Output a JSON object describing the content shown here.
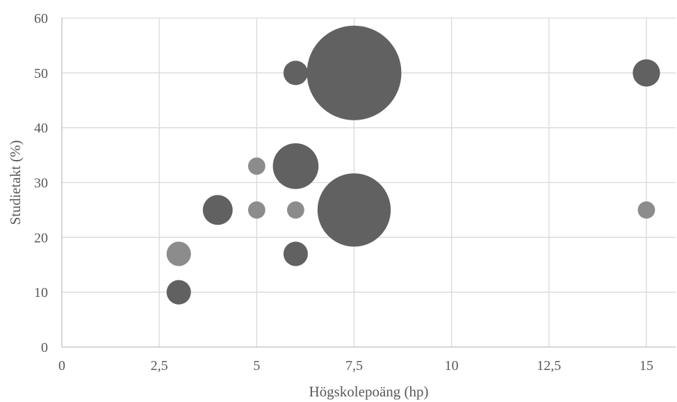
{
  "chart_data": {
    "type": "bubble",
    "title": "",
    "xlabel": "Högskolepoäng (hp)",
    "ylabel": "Studietakt (%)",
    "xlim": [
      0,
      15.75
    ],
    "ylim": [
      0,
      60
    ],
    "x_ticks": [
      0,
      2.5,
      5,
      7.5,
      10,
      12.5,
      15
    ],
    "x_tick_labels": [
      "0",
      "2,5",
      "5",
      "7,5",
      "10",
      "12,5",
      "15"
    ],
    "y_ticks": [
      0,
      10,
      20,
      30,
      40,
      50,
      60
    ],
    "y_tick_labels": [
      "0",
      "10",
      "20",
      "30",
      "40",
      "50",
      "60"
    ],
    "grid": true,
    "legend": "none",
    "colors": {
      "dark": "#616161",
      "light": "#8c8c8c"
    },
    "points": [
      {
        "x": 7.5,
        "y": 50,
        "size": 30,
        "tone": "dark"
      },
      {
        "x": 7.5,
        "y": 25,
        "size": 18,
        "tone": "dark"
      },
      {
        "x": 6,
        "y": 33,
        "size": 7,
        "tone": "dark"
      },
      {
        "x": 6,
        "y": 50,
        "size": 2,
        "tone": "dark"
      },
      {
        "x": 15,
        "y": 50,
        "size": 2.5,
        "tone": "dark"
      },
      {
        "x": 4,
        "y": 25,
        "size": 3,
        "tone": "dark"
      },
      {
        "x": 3,
        "y": 10,
        "size": 2,
        "tone": "dark"
      },
      {
        "x": 6,
        "y": 17,
        "size": 2,
        "tone": "dark"
      },
      {
        "x": 3,
        "y": 17,
        "size": 2,
        "tone": "light"
      },
      {
        "x": 5,
        "y": 33,
        "size": 1,
        "tone": "light"
      },
      {
        "x": 5,
        "y": 25,
        "size": 1,
        "tone": "light"
      },
      {
        "x": 6,
        "y": 25,
        "size": 1,
        "tone": "light"
      },
      {
        "x": 15,
        "y": 25,
        "size": 1,
        "tone": "light"
      }
    ]
  }
}
